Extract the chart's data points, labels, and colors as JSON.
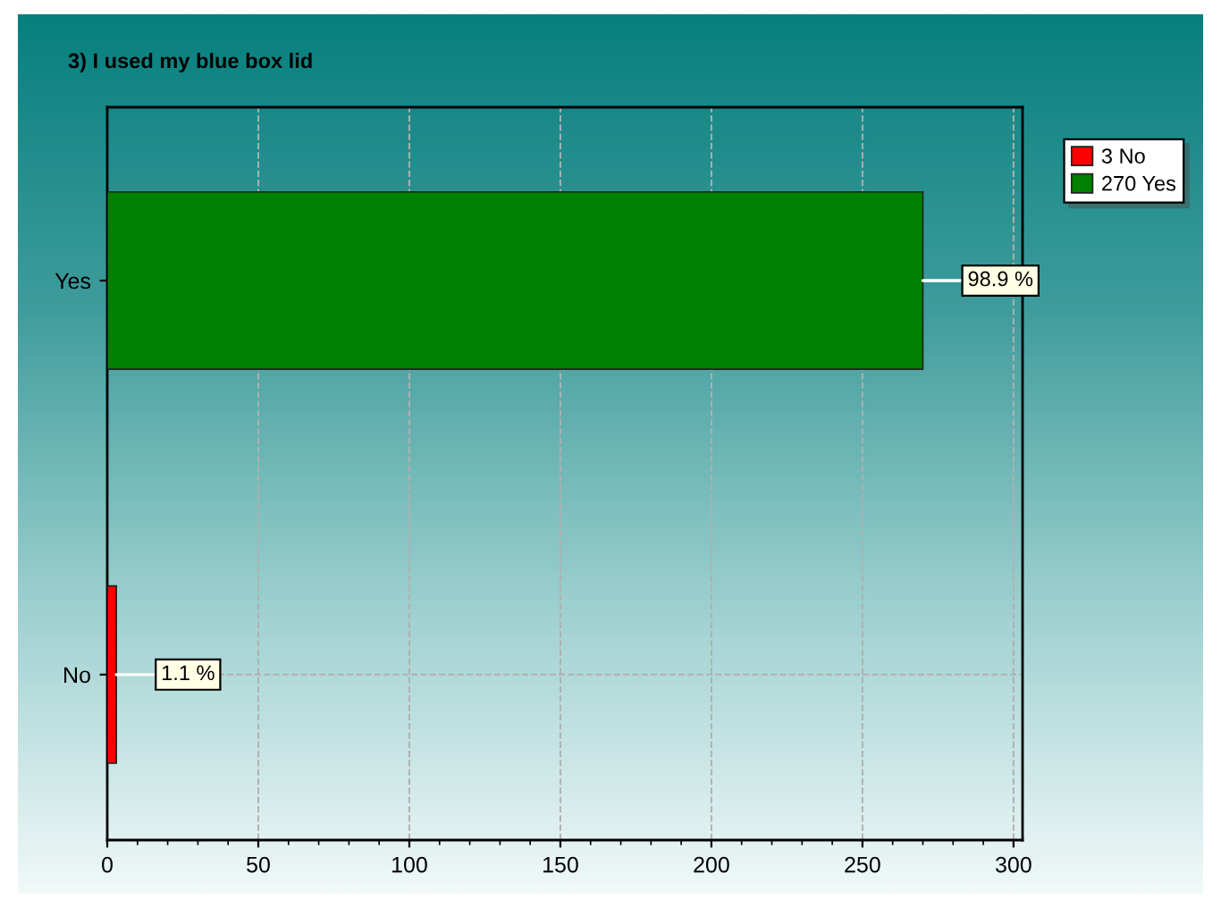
{
  "chart_data": {
    "type": "bar",
    "orientation": "horizontal",
    "title": "3) I used my blue box lid",
    "categories": [
      "Yes",
      "No"
    ],
    "series": [
      {
        "name": "3 No",
        "color": "#ff0000",
        "values": [
          null,
          3
        ]
      },
      {
        "name": "270 Yes",
        "color": "#008000",
        "values": [
          270,
          null
        ]
      }
    ],
    "annotations": [
      {
        "text": "98.9 %",
        "x": 270,
        "y": "Yes"
      },
      {
        "text": "1.1 %",
        "x": 3,
        "y": "No"
      }
    ],
    "xlim": [
      0,
      303
    ],
    "xticks": [
      0,
      50,
      100,
      150,
      200,
      250,
      300
    ],
    "grid": true,
    "legend": "top right"
  }
}
